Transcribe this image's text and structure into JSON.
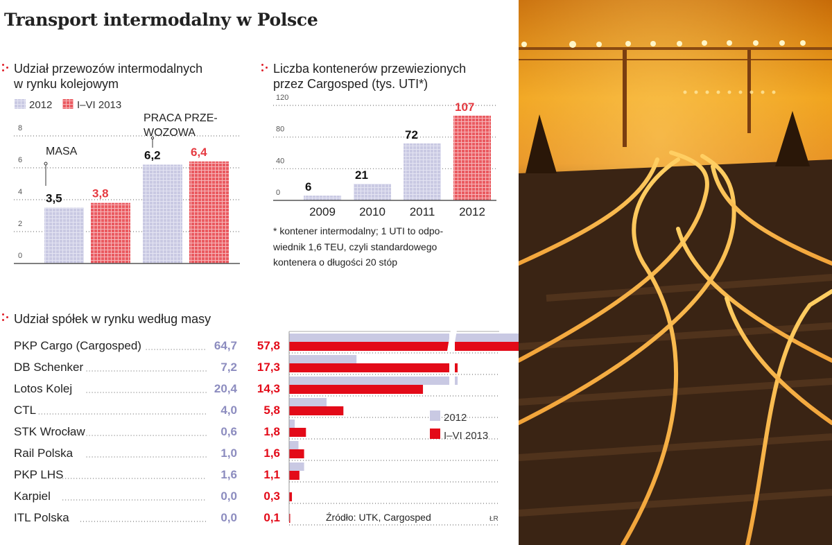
{
  "title": "Transport intermodalny w Polsce",
  "colors": {
    "c2012": "#c9c9e3",
    "c2013": "#e53a41",
    "bar2013": "#e30a18",
    "accent": "#e0202a",
    "value2012": "#8c8cbf"
  },
  "legend": {
    "y2012": "2012",
    "y2013": "I–VI 2013"
  },
  "chart1": {
    "heading_line1": "Udział przewozów intermodalnych",
    "heading_line2": "w rynku kolejowym",
    "masa_label": "MASA",
    "praca_line1": "PRACA PRZE-",
    "praca_line2": "WOZOWA"
  },
  "chart2": {
    "heading_line1": "Liczba kontenerów przewiezionych",
    "heading_line2": "przez Cargosped (tys. UTI*)",
    "footnote_line1": "* kontener intermodalny; 1 UTI to odpo-",
    "footnote_line2": "wiednik 1,6 TEU, czyli standardowego",
    "footnote_line3": "kontenera o długości 20 stóp"
  },
  "chart3": {
    "heading": "Udział spółek w rynku według masy"
  },
  "source": "Źródło: UTK, Cargosped",
  "credit": "ŁR",
  "chart_data": [
    {
      "type": "bar",
      "title": "Udział przewozów intermodalnych w rynku kolejowym",
      "categories": [
        "MASA",
        "PRACA PRZEWOZOWA"
      ],
      "series": [
        {
          "name": "2012",
          "values": [
            3.5,
            6.2
          ],
          "labels": [
            "3,5",
            "6,2"
          ]
        },
        {
          "name": "I–VI 2013",
          "values": [
            3.8,
            6.4
          ],
          "labels": [
            "3,8",
            "6,4"
          ]
        }
      ],
      "ylim": [
        0,
        8
      ],
      "yticks": [
        0,
        2,
        4,
        6,
        8
      ],
      "legend": "top-left"
    },
    {
      "type": "bar",
      "title": "Liczba kontenerów przewiezionych przez Cargosped (tys. UTI*)",
      "categories": [
        "2009",
        "2010",
        "2011",
        "2012"
      ],
      "values": [
        6,
        21,
        72,
        107
      ],
      "labels": [
        "6",
        "21",
        "72",
        "107"
      ],
      "ylim": [
        0,
        120
      ],
      "yticks": [
        0,
        40,
        80,
        120
      ]
    },
    {
      "type": "bar",
      "orientation": "horizontal",
      "title": "Udział spółek w rynku według masy",
      "categories": [
        "PKP Cargo (Cargosped)",
        "DB Schenker",
        "Lotos Kolej",
        "CTL",
        "STK Wrocław",
        "Rail Polska",
        "PKP LHS",
        "Karpiel",
        "ITL Polska"
      ],
      "series": [
        {
          "name": "2012",
          "values": [
            64.7,
            7.2,
            20.4,
            4.0,
            0.6,
            1.0,
            1.6,
            0.0,
            0.0
          ],
          "labels": [
            "64,7",
            "7,2",
            "20,4",
            "4,0",
            "0,6",
            "1,0",
            "1,6",
            "0,0",
            "0,0"
          ]
        },
        {
          "name": "I–VI 2013",
          "values": [
            57.8,
            17.3,
            14.3,
            5.8,
            1.8,
            1.6,
            1.1,
            0.3,
            0.1
          ],
          "labels": [
            "57,8",
            "17,3",
            "14,3",
            "5,8",
            "1,8",
            "1,6",
            "1,1",
            "0,3",
            "0,1"
          ]
        }
      ],
      "axis_break": true,
      "legend": "right"
    }
  ]
}
